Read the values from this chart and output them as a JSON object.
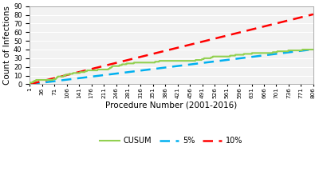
{
  "xlabel": "Procedure Number (2001-2016)",
  "ylabel": "Count of Infections",
  "xlim": [
    1,
    806
  ],
  "ylim": [
    0,
    90
  ],
  "yticks": [
    0,
    10,
    20,
    30,
    40,
    50,
    60,
    70,
    80,
    90
  ],
  "xtick_labels": [
    "1",
    "36",
    "71",
    "106",
    "141",
    "176",
    "211",
    "246",
    "281",
    "316",
    "351",
    "386",
    "421",
    "456",
    "491",
    "526",
    "561",
    "596",
    "631",
    "666",
    "701",
    "736",
    "771",
    "806"
  ],
  "xtick_vals": [
    1,
    36,
    71,
    106,
    141,
    176,
    211,
    246,
    281,
    316,
    351,
    386,
    421,
    456,
    491,
    526,
    561,
    596,
    631,
    666,
    701,
    736,
    771,
    806
  ],
  "n_points": 806,
  "infection_rate_5pct": 0.05,
  "infection_rate_10pct": 0.1,
  "cusum_color": "#92d050",
  "pct5_color": "#00b0f0",
  "pct10_color": "#ff0000",
  "background_color": "#ffffff",
  "plot_bg_color": "#f2f2f2",
  "legend_labels": [
    "CUSUM",
    "5%",
    "10%"
  ],
  "infection_events": [
    2,
    3,
    5,
    10,
    11,
    36,
    71,
    106,
    110,
    125,
    134,
    141,
    153,
    163,
    170,
    176,
    192,
    210,
    211,
    224,
    236,
    239,
    246,
    252,
    261,
    270,
    281,
    286,
    295,
    302,
    316,
    321,
    330,
    340,
    351,
    355,
    363,
    370,
    386,
    390,
    399,
    421,
    430,
    456,
    461,
    491,
    495,
    503,
    526,
    530,
    561,
    563,
    596,
    601,
    631,
    636,
    666,
    671,
    701,
    706,
    736,
    741,
    771,
    776,
    800,
    806
  ]
}
